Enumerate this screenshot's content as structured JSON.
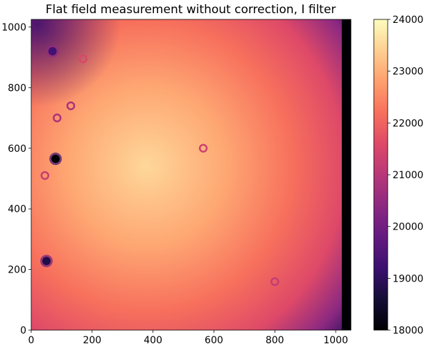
{
  "chart_data": {
    "type": "heatmap",
    "title": "Flat field measurement without correction, I filter",
    "xlabel": "",
    "ylabel": "",
    "xlim": [
      0,
      1050
    ],
    "ylim": [
      0,
      1025
    ],
    "x_ticks": [
      0,
      200,
      400,
      600,
      800,
      1000
    ],
    "y_ticks": [
      0,
      200,
      400,
      600,
      800,
      1000
    ],
    "colormap": "magma",
    "colorbar": {
      "range": [
        18000,
        24000
      ],
      "ticks": [
        18000,
        19000,
        20000,
        21000,
        22000,
        23000,
        24000
      ]
    },
    "value_field": {
      "bright_center": [
        380,
        540
      ],
      "peak_value": 23500,
      "edge_value": 21000,
      "corner_value": 19000
    },
    "features": [
      {
        "x": 80,
        "y": 565,
        "value": 18000,
        "kind": "dark spot"
      },
      {
        "x": 50,
        "y": 228,
        "value": 18800,
        "kind": "dark spot"
      },
      {
        "x": 130,
        "y": 740,
        "value": 20800,
        "kind": "ring"
      },
      {
        "x": 85,
        "y": 700,
        "value": 20800,
        "kind": "ring"
      },
      {
        "x": 45,
        "y": 510,
        "value": 21200,
        "kind": "ring"
      },
      {
        "x": 565,
        "y": 600,
        "value": 21300,
        "kind": "ring"
      },
      {
        "x": 800,
        "y": 160,
        "value": 21200,
        "kind": "ring"
      },
      {
        "x": 170,
        "y": 895,
        "value": 21500,
        "kind": "ring"
      },
      {
        "x": 70,
        "y": 920,
        "value": 19300,
        "kind": "dark spot"
      }
    ],
    "dead_columns_x_start": 1020
  }
}
